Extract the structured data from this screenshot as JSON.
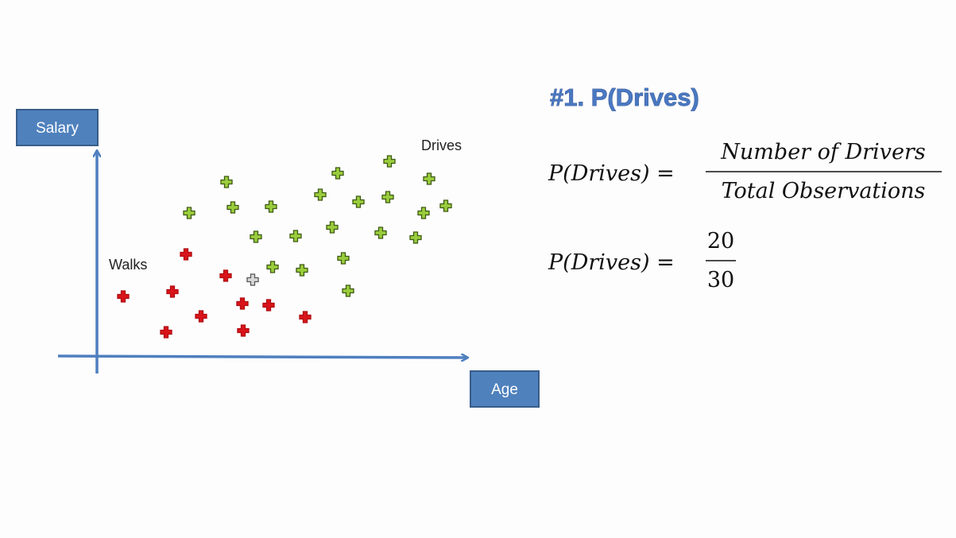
{
  "axes": {
    "y_label": "Salary",
    "x_label": "Age"
  },
  "groups": {
    "walks": "Walks",
    "drives": "Drives"
  },
  "title": "#1. P(Drives)",
  "formula_1": {
    "lhs": "P(Drives) =",
    "numerator": "Number of Drivers",
    "denominator": "Total Observations"
  },
  "formula_2": {
    "lhs": "P(Drives) =",
    "numerator": "20",
    "denominator": "30"
  }
}
